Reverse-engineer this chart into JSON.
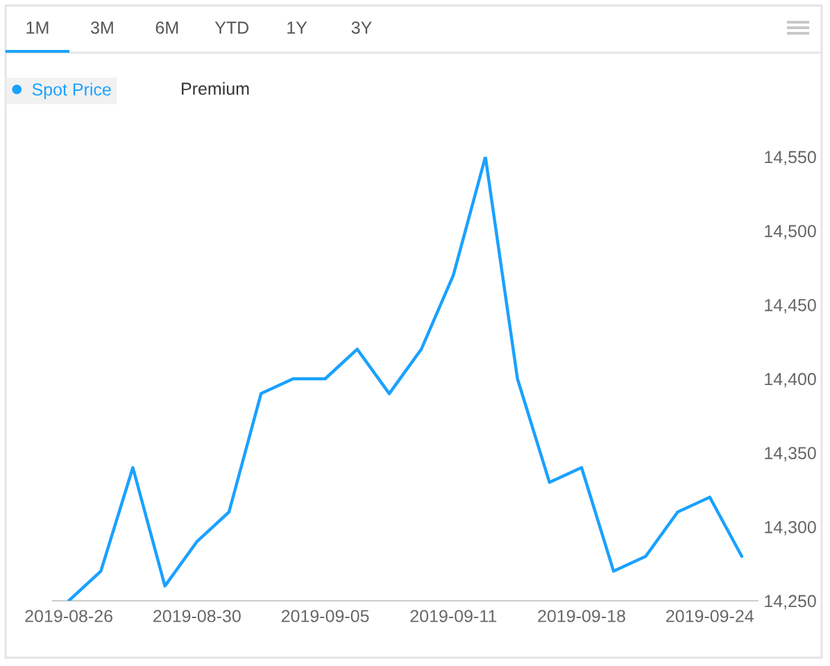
{
  "chart_data": {
    "type": "line",
    "categories": [
      "2019-08-26",
      null,
      null,
      null,
      "2019-08-30",
      null,
      null,
      null,
      "2019-09-05",
      null,
      null,
      null,
      "2019-09-11",
      null,
      null,
      null,
      "2019-09-18",
      null,
      null,
      null,
      "2019-09-24",
      null
    ],
    "series": [
      {
        "name": "Spot Price",
        "color": "#1aa1ff",
        "values": [
          14250,
          14270,
          14340,
          14260,
          14290,
          14310,
          14390,
          14400,
          14400,
          14420,
          14390,
          14420,
          14470,
          14550,
          14400,
          14330,
          14340,
          14270,
          14280,
          14310,
          14320,
          14280
        ]
      }
    ],
    "ylim": [
      14250,
      14550
    ],
    "yticks": [
      {
        "value": 14250,
        "label": "14,250"
      },
      {
        "value": 14300,
        "label": "14,300"
      },
      {
        "value": 14350,
        "label": "14,350"
      },
      {
        "value": 14400,
        "label": "14,400"
      },
      {
        "value": 14450,
        "label": "14,450"
      },
      {
        "value": 14500,
        "label": "14,500"
      },
      {
        "value": 14550,
        "label": "14,550"
      }
    ],
    "legend": "top left",
    "annotations": [
      "1M",
      "3M",
      "6M",
      "YTD",
      "1Y",
      "3Y",
      "Premium"
    ]
  }
}
